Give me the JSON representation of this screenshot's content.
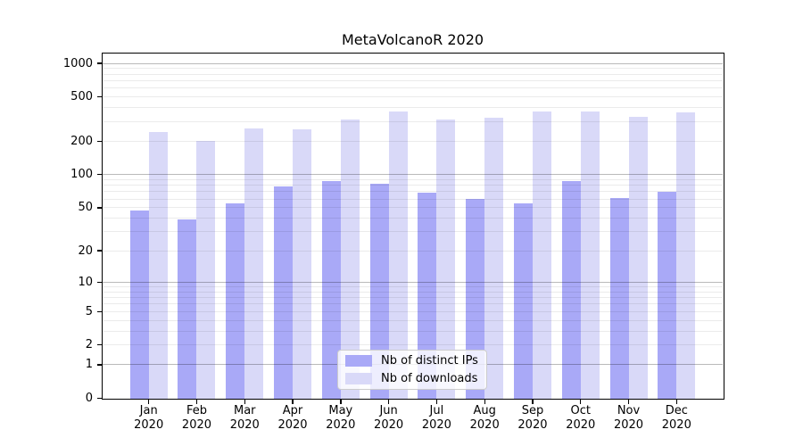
{
  "title": "MetaVolcanoR 2020",
  "chart_data": {
    "type": "bar",
    "title": "MetaVolcanoR 2020",
    "months": [
      "Jan",
      "Feb",
      "Mar",
      "Apr",
      "May",
      "Jun",
      "Jul",
      "Aug",
      "Sep",
      "Oct",
      "Nov",
      "Dec"
    ],
    "year": "2020",
    "series": [
      {
        "name": "Nb of distinct IPs",
        "key": "distinct-ips",
        "color": "#a9a9f7",
        "values": [
          47,
          39,
          55,
          78,
          88,
          83,
          69,
          60,
          55,
          87,
          61,
          70
        ]
      },
      {
        "name": "Nb of downloads",
        "key": "downloads",
        "color": "#d9d9f8",
        "values": [
          243,
          201,
          262,
          256,
          315,
          370,
          313,
          327,
          370,
          370,
          333,
          363
        ]
      }
    ],
    "xlabel": "",
    "ylabel": "",
    "yscale": "log1p",
    "yticks": [
      0,
      1,
      2,
      5,
      10,
      20,
      50,
      100,
      200,
      500,
      1000
    ],
    "ylim": [
      0,
      1225
    ],
    "grid": "horizontal major at 1,10,100,1000 and faint log minors, drawn over bars",
    "legend_position": "inside lower-center"
  },
  "colors": {
    "background": "#ffffff",
    "axis": "#000000",
    "major_grid": "#bababa",
    "minor_grid": "#ededed",
    "legend_border": "#cccccc"
  }
}
